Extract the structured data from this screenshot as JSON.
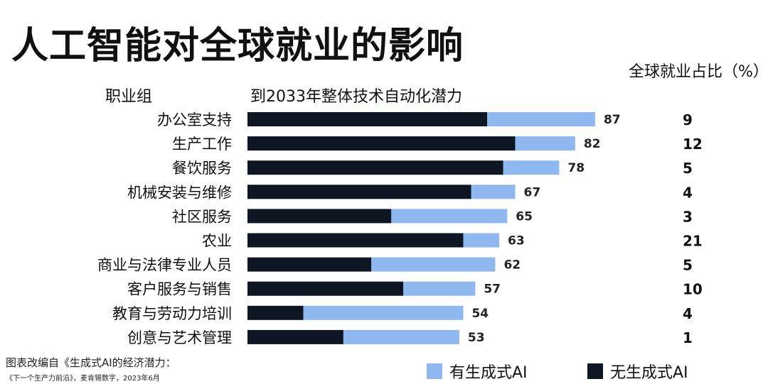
{
  "title": "人工智能对全球就业的影响",
  "headers": {
    "group": "职业组",
    "potential": "到2033年整体技术自动化潜力",
    "share": "全球就业占比（%）"
  },
  "footnote": {
    "line1": "图表改编自《生成式AI的经济潜力：",
    "line2": "《下一个生产力前沿》，麦肯锡数字，2023年6月"
  },
  "colors": {
    "genai": "#8fb8f0",
    "no_genai": "#0d1622"
  },
  "chart_data": {
    "type": "bar",
    "orientation": "horizontal",
    "stacked": true,
    "categories": [
      "办公室支持",
      "生产工作",
      "餐饮服务",
      "机械安装与维修",
      "社区服务",
      "农业",
      "商业与法律专业人员",
      "客户服务与销售",
      "教育与劳动力培训",
      "创意与艺术管理"
    ],
    "series": [
      {
        "name": "无生成式AI",
        "color": "#0d1622",
        "values": [
          60,
          67,
          64,
          56,
          36,
          54,
          31,
          39,
          14,
          24
        ]
      },
      {
        "name": "有生成式AI",
        "color": "#8fb8f0",
        "values": [
          27,
          15,
          14,
          11,
          29,
          9,
          31,
          18,
          40,
          29
        ]
      }
    ],
    "totals": [
      87,
      82,
      78,
      67,
      65,
      63,
      62,
      57,
      54,
      53
    ],
    "employment_share": [
      9,
      12,
      5,
      4,
      3,
      21,
      5,
      10,
      4,
      1
    ],
    "xlim": [
      0,
      100
    ],
    "legend": [
      "有生成式AI",
      "无生成式AI"
    ],
    "legend_position": "bottom-right",
    "grid": false
  }
}
